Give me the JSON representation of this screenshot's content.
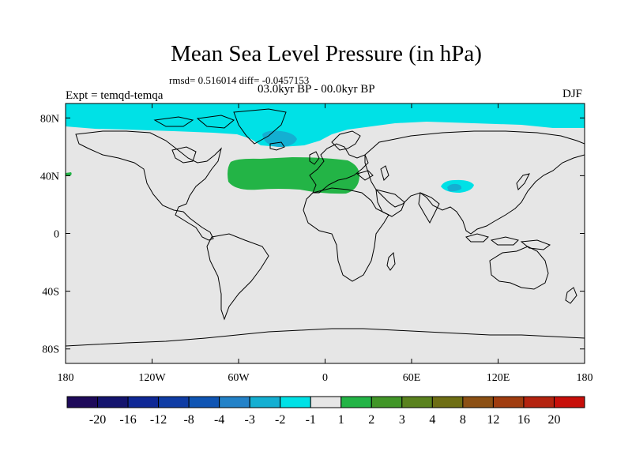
{
  "chart_data": {
    "type": "heatmap",
    "title": "Mean Sea Level Pressure (in hPa)",
    "stats_text": "rmsd= 0.516014 diff= -0.0457153",
    "period_text": "03.0kyr BP - 00.0kyr BP",
    "experiment_text": "Expt = temqd-temqa",
    "season_text": "DJF",
    "xlim": [
      -180,
      180
    ],
    "ylim": [
      -90,
      90
    ],
    "x_ticks": [
      {
        "value": -180,
        "label": "180"
      },
      {
        "value": -120,
        "label": "120W"
      },
      {
        "value": -60,
        "label": "60W"
      },
      {
        "value": 0,
        "label": "0"
      },
      {
        "value": 60,
        "label": "60E"
      },
      {
        "value": 120,
        "label": "120E"
      },
      {
        "value": 180,
        "label": "180"
      }
    ],
    "y_ticks": [
      {
        "value": 80,
        "label": "80N"
      },
      {
        "value": 40,
        "label": "40N"
      },
      {
        "value": 0,
        "label": "0"
      },
      {
        "value": -40,
        "label": "40S"
      },
      {
        "value": -80,
        "label": "80S"
      }
    ],
    "colorbar": {
      "levels": [
        "-20",
        "-16",
        "-12",
        "-8",
        "-4",
        "-3",
        "-2",
        "-1",
        "1",
        "2",
        "3",
        "4",
        "8",
        "12",
        "16",
        "20"
      ],
      "colors": [
        "#1e0a5a",
        "#14146e",
        "#0f2896",
        "#0f3ca5",
        "#0f55b4",
        "#2382c8",
        "#14afd2",
        "#00e1e6",
        "#e6e6e6",
        "#23b446",
        "#419628",
        "#5a821e",
        "#6e6e14",
        "#8c5014",
        "#a03c0f",
        "#b4230f",
        "#c80f0a"
      ]
    },
    "regions": [
      {
        "name": "arctic-band",
        "value_range": "-2 to -1",
        "color": "#00e1e6"
      },
      {
        "name": "greenland-sea-low",
        "value_range": "-3 to -2",
        "color": "#14afd2"
      },
      {
        "name": "north-atlantic-mediterranean-high",
        "value_range": "1 to 2",
        "color": "#23b446"
      },
      {
        "name": "tibet-low",
        "value_range": "-2 to -1",
        "color": "#00e1e6"
      },
      {
        "name": "tibet-core",
        "value_range": "-3 to -2",
        "color": "#14afd2"
      },
      {
        "name": "background",
        "value_range": "-1 to 1",
        "color": "#e6e6e6"
      }
    ]
  }
}
